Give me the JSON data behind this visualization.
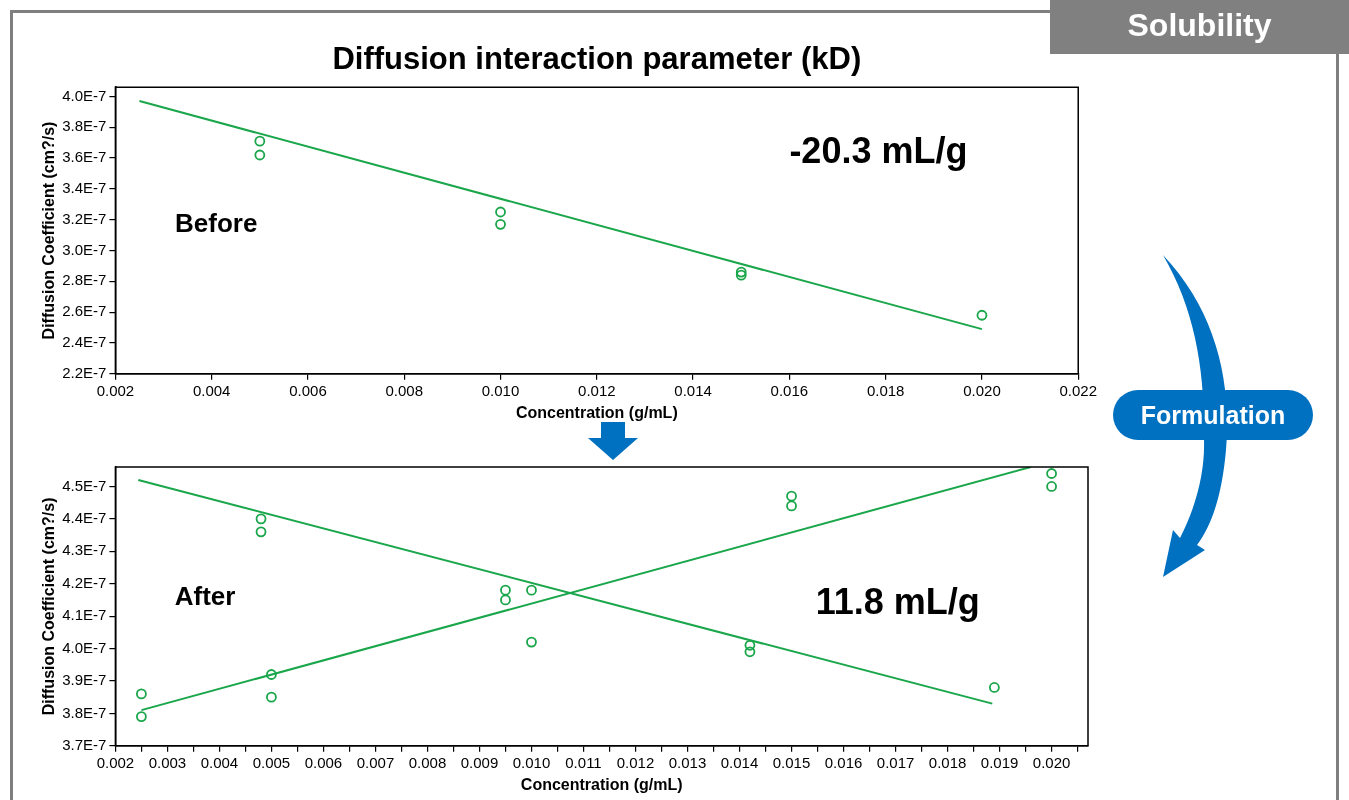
{
  "chart_data": [
    {
      "type": "scatter",
      "title": "Diffusion interaction parameter (kD)",
      "xlabel": "Concentration (g/mL)",
      "ylabel": "Diffusion Coefficient (cm?/s)",
      "xlim": [
        0.002,
        0.022
      ],
      "xticks": [
        {
          "value": 0.002,
          "label": "0.002"
        },
        {
          "value": 0.004,
          "label": "0.004"
        },
        {
          "value": 0.006,
          "label": "0.006"
        },
        {
          "value": 0.008,
          "label": "0.008"
        },
        {
          "value": 0.01,
          "label": "0.010"
        },
        {
          "value": 0.012,
          "label": "0.012"
        },
        {
          "value": 0.014,
          "label": "0.014"
        },
        {
          "value": 0.016,
          "label": "0.016"
        },
        {
          "value": 0.018,
          "label": "0.018"
        },
        {
          "value": 0.02,
          "label": "0.020"
        },
        {
          "value": 0.022,
          "label": "0.022"
        }
      ],
      "ylim": [
        2.2e-07,
        4.06e-07
      ],
      "yticks": [
        {
          "value": 2.2e-07,
          "label": "2.2E-7"
        },
        {
          "value": 2.4e-07,
          "label": "2.4E-7"
        },
        {
          "value": 2.6e-07,
          "label": "2.6E-7"
        },
        {
          "value": 2.8e-07,
          "label": "2.8E-7"
        },
        {
          "value": 3e-07,
          "label": "3.0E-7"
        },
        {
          "value": 3.2e-07,
          "label": "3.2E-7"
        },
        {
          "value": 3.4e-07,
          "label": "3.4E-7"
        },
        {
          "value": 3.6e-07,
          "label": "3.6E-7"
        },
        {
          "value": 3.8e-07,
          "label": "3.8E-7"
        },
        {
          "value": 4e-07,
          "label": "4.0E-7"
        }
      ],
      "series": [
        {
          "color": "#1aa64a",
          "marker": "circle",
          "x": [
            0.005,
            0.005,
            0.01,
            0.01,
            0.015,
            0.015,
            0.02
          ],
          "values": [
            3.71e-07,
            3.62e-07,
            3.25e-07,
            3.17e-07,
            2.86e-07,
            2.84e-07,
            2.58e-07
          ]
        },
        {
          "type": "line",
          "marker": "none",
          "color": "#1aa64a",
          "x": [
            0.0025,
            0.02
          ],
          "values": [
            3.97e-07,
            2.49e-07
          ]
        }
      ],
      "annotations": [
        "Before",
        "-20.3 mL/g",
        "Solubility",
        "Formulation"
      ]
    },
    {
      "type": "scatter",
      "xlabel": "Concentration (g/mL)",
      "ylabel": "Diffusion Coefficient (cm?/s)",
      "xlim": [
        0.002,
        0.0207
      ],
      "xticks": [
        {
          "value": 0.002,
          "label": "0.002"
        },
        {
          "value": 0.0025,
          "label": null
        },
        {
          "value": 0.003,
          "label": "0.003"
        },
        {
          "value": 0.0035,
          "label": null
        },
        {
          "value": 0.004,
          "label": "0.004"
        },
        {
          "value": 0.0045,
          "label": null
        },
        {
          "value": 0.005,
          "label": "0.005"
        },
        {
          "value": 0.0055,
          "label": null
        },
        {
          "value": 0.006,
          "label": "0.006"
        },
        {
          "value": 0.0065,
          "label": null
        },
        {
          "value": 0.007,
          "label": "0.007"
        },
        {
          "value": 0.0075,
          "label": null
        },
        {
          "value": 0.008,
          "label": "0.008"
        },
        {
          "value": 0.0085,
          "label": null
        },
        {
          "value": 0.009,
          "label": "0.009"
        },
        {
          "value": 0.0095,
          "label": null
        },
        {
          "value": 0.01,
          "label": "0.010"
        },
        {
          "value": 0.0105,
          "label": null
        },
        {
          "value": 0.011,
          "label": "0.011"
        },
        {
          "value": 0.0115,
          "label": null
        },
        {
          "value": 0.012,
          "label": "0.012"
        },
        {
          "value": 0.0125,
          "label": null
        },
        {
          "value": 0.013,
          "label": "0.013"
        },
        {
          "value": 0.0135,
          "label": null
        },
        {
          "value": 0.014,
          "label": "0.014"
        },
        {
          "value": 0.0145,
          "label": null
        },
        {
          "value": 0.015,
          "label": "0.015"
        },
        {
          "value": 0.0155,
          "label": null
        },
        {
          "value": 0.016,
          "label": "0.016"
        },
        {
          "value": 0.0165,
          "label": null
        },
        {
          "value": 0.017,
          "label": "0.017"
        },
        {
          "value": 0.0175,
          "label": null
        },
        {
          "value": 0.018,
          "label": "0.018"
        },
        {
          "value": 0.0185,
          "label": null
        },
        {
          "value": 0.019,
          "label": "0.019"
        },
        {
          "value": 0.0195,
          "label": null
        },
        {
          "value": 0.02,
          "label": "0.020"
        },
        {
          "value": 0.0205,
          "label": null
        }
      ],
      "ylim": [
        3.7e-07,
        4.56e-07
      ],
      "yticks": [
        {
          "value": 3.7e-07,
          "label": "3.7E-7"
        },
        {
          "value": 3.8e-07,
          "label": "3.8E-7"
        },
        {
          "value": 3.9e-07,
          "label": "3.9E-7"
        },
        {
          "value": 4e-07,
          "label": "4.0E-7"
        },
        {
          "value": 4.1e-07,
          "label": "4.1E-7"
        },
        {
          "value": 4.2e-07,
          "label": "4.2E-7"
        },
        {
          "value": 4.3e-07,
          "label": "4.3E-7"
        },
        {
          "value": 4.4e-07,
          "label": "4.4E-7"
        },
        {
          "value": 4.5e-07,
          "label": "4.5E-7"
        }
      ],
      "series": [
        {
          "color": "#1aa64a",
          "marker": "circle",
          "x": [
            0.0048,
            0.0048,
            0.0095,
            0.0095,
            0.0142,
            0.0142,
            0.0189
          ],
          "values": [
            4.4e-07,
            4.36e-07,
            4.18e-07,
            4.15e-07,
            4.01e-07,
            3.99e-07,
            3.88e-07
          ]
        },
        {
          "color": "#1aa64a",
          "marker": "circle",
          "x": [
            0.0025,
            0.0025,
            0.005,
            0.005,
            0.01,
            0.01,
            0.015,
            0.015,
            0.02,
            0.02
          ],
          "values": [
            3.86e-07,
            3.79e-07,
            3.92e-07,
            3.85e-07,
            4.18e-07,
            4.02e-07,
            4.47e-07,
            4.44e-07,
            4.54e-07,
            4.5e-07
          ]
        },
        {
          "type": "line",
          "marker": "none",
          "color": "#1aa64a",
          "x": [
            0.00244,
            0.01886
          ],
          "values": [
            4.52e-07,
            3.83e-07
          ]
        },
        {
          "type": "line",
          "marker": "none",
          "color": "#1aa64a",
          "x": [
            0.0025,
            0.0196
          ],
          "values": [
            3.81e-07,
            4.56e-07
          ]
        }
      ],
      "annotations": [
        "After",
        "11.8 mL/g"
      ]
    }
  ]
}
